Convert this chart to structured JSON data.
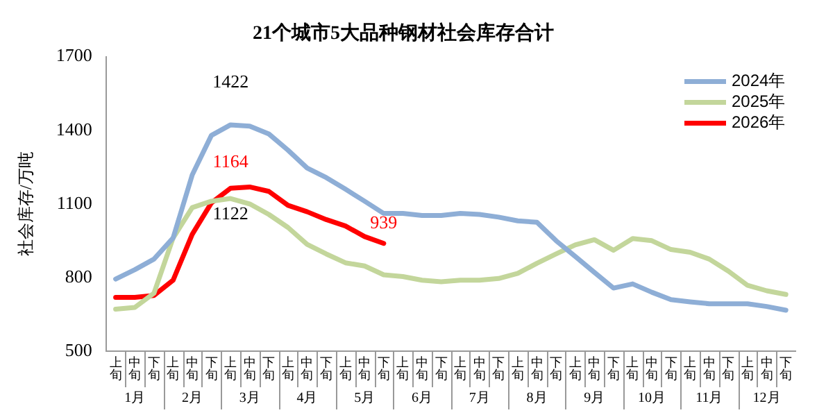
{
  "chart_data": {
    "type": "line",
    "title": "21个城市5大品种钢材社会库存合计",
    "ylabel": "社会库存/万吨",
    "categories": [
      "上旬",
      "中旬",
      "下旬",
      "上旬",
      "中旬",
      "下旬",
      "上旬",
      "中旬",
      "下旬",
      "上旬",
      "中旬",
      "下旬",
      "上旬",
      "中旬",
      "下旬",
      "上旬",
      "中旬",
      "下旬",
      "上旬",
      "中旬",
      "下旬",
      "上旬",
      "中旬",
      "下旬",
      "上旬",
      "中旬",
      "下旬",
      "上旬",
      "中旬",
      "下旬",
      "上旬",
      "中旬",
      "下旬",
      "上旬",
      "中旬",
      "下旬"
    ],
    "annotations": [
      "1月",
      "2月",
      "3月",
      "4月",
      "5月",
      "6月",
      "7月",
      "8月",
      "9月",
      "10月",
      "11月",
      "12月"
    ],
    "series": [
      {
        "name": "2024年",
        "color": "#8eaed6",
        "values": [
          794,
          832,
          875,
          961,
          1218,
          1379,
          1422,
          1417,
          1385,
          1319,
          1246,
          1207,
          1160,
          1111,
          1061,
          1061,
          1053,
          1053,
          1061,
          1057,
          1046,
          1031,
          1025,
          950,
          886,
          821,
          757,
          774,
          740,
          710,
          701,
          693,
          693,
          693,
          682,
          667
        ],
        "value_labels": [
          null,
          null,
          null,
          null,
          null,
          null,
          "1422",
          null,
          null,
          null,
          null,
          null,
          null,
          null,
          null,
          null,
          null,
          null,
          null,
          null,
          null,
          null,
          null,
          null,
          null,
          null,
          null,
          null,
          null,
          null,
          null,
          null,
          null,
          null,
          null,
          null
        ]
      },
      {
        "name": "2025年",
        "color": "#c3d69b",
        "values": [
          671,
          678,
          736,
          961,
          1085,
          1111,
          1122,
          1100,
          1057,
          1004,
          935,
          896,
          860,
          847,
          811,
          804,
          789,
          783,
          789,
          789,
          796,
          817,
          858,
          896,
          933,
          954,
          911,
          959,
          950,
          914,
          903,
          875,
          826,
          768,
          746,
          731
        ],
        "value_labels": [
          null,
          null,
          null,
          null,
          null,
          null,
          "1122",
          null,
          null,
          null,
          null,
          null,
          null,
          null,
          null,
          null,
          null,
          null,
          null,
          null,
          null,
          null,
          null,
          null,
          null,
          null,
          null,
          null,
          null,
          null,
          null,
          null,
          null,
          null,
          null,
          null
        ]
      },
      {
        "name": "2026年",
        "color": "#ff0000",
        "values": [
          719,
          719,
          727,
          789,
          976,
          1104,
          1164,
          1169,
          1151,
          1094,
          1068,
          1036,
          1010,
          967,
          939,
          null,
          null,
          null,
          null,
          null,
          null,
          null,
          null,
          null,
          null,
          null,
          null,
          null,
          null,
          null,
          null,
          null,
          null,
          null,
          null,
          null
        ],
        "value_labels": [
          null,
          null,
          null,
          null,
          null,
          null,
          "1164",
          null,
          null,
          null,
          null,
          null,
          null,
          null,
          "939",
          null,
          null,
          null,
          null,
          null,
          null,
          null,
          null,
          null,
          null,
          null,
          null,
          null,
          null,
          null,
          null,
          null,
          null,
          null,
          null,
          null
        ]
      }
    ],
    "ylim": [
      500,
      1700
    ],
    "yticks": [
      500,
      800,
      1100,
      1400,
      1700
    ],
    "grid": false,
    "legend": "top right",
    "marker": "none",
    "line_style": "solid"
  }
}
